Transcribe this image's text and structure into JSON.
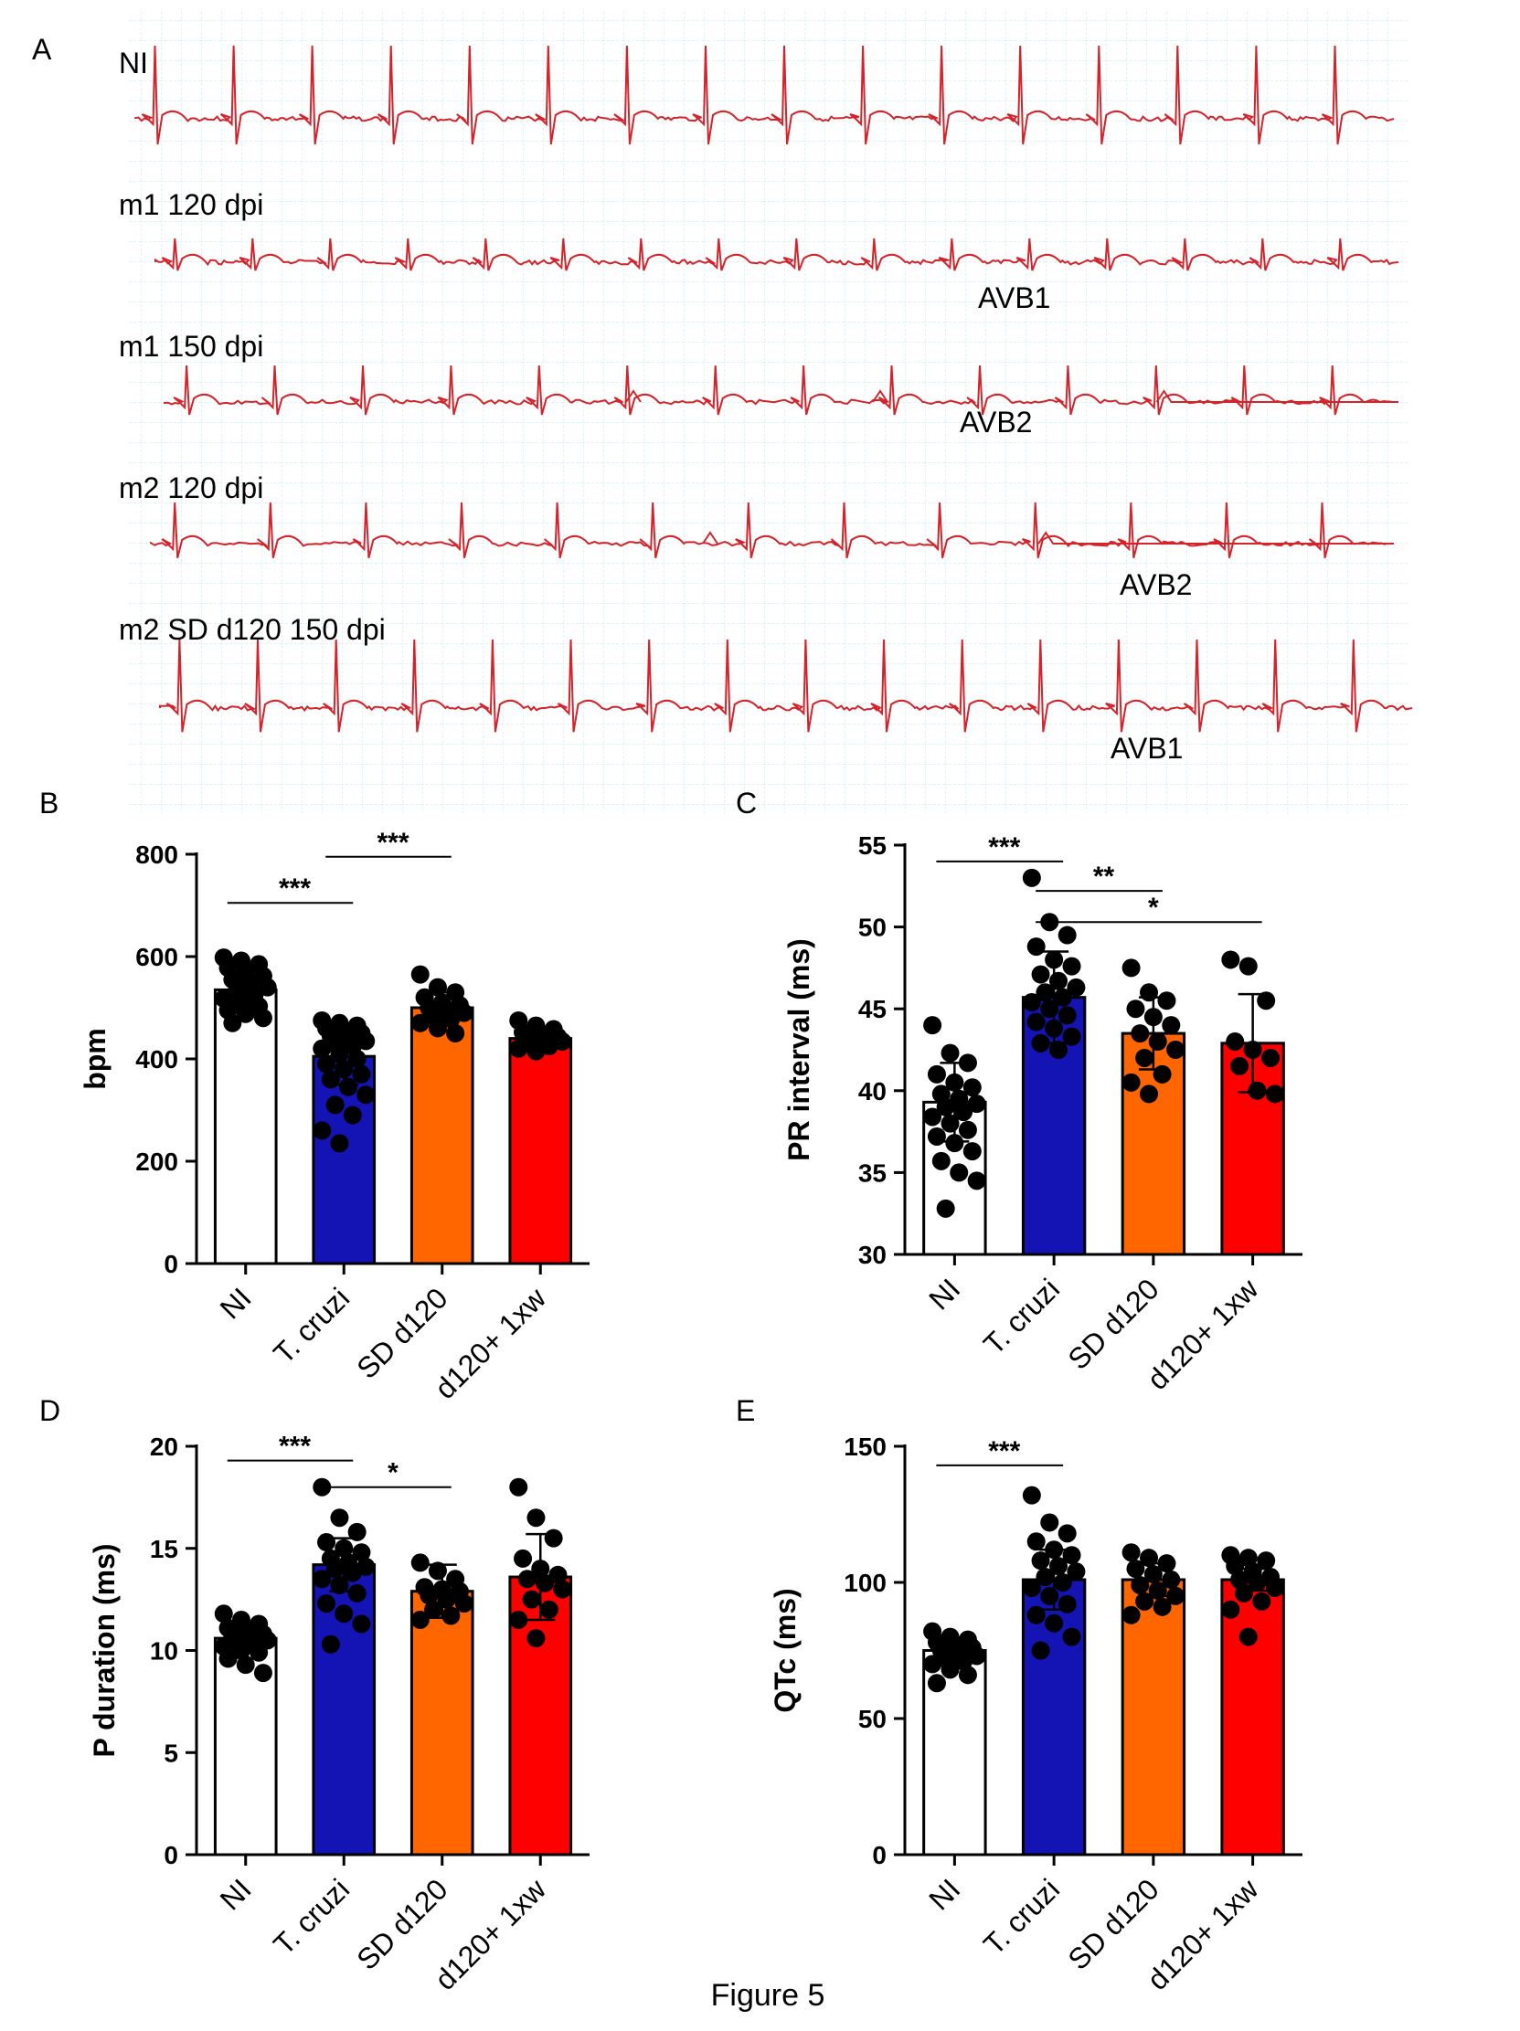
{
  "figure_caption": "Figure 5",
  "panel_a": {
    "letter": "A",
    "grid_color": "#bfe9f2",
    "trace_color": "#d4232a",
    "traces": [
      {
        "label": "NI",
        "annotation": "",
        "beats": 16,
        "extra_beats": []
      },
      {
        "label": "m1  120 dpi",
        "annotation": "AVB1",
        "beats": 16,
        "extra_beats": []
      },
      {
        "label": "m1  150 dpi",
        "annotation": "AVB2",
        "beats": 14,
        "extra_beats": [
          0.38,
          0.58,
          0.81
        ]
      },
      {
        "label": "m2  120 dpi",
        "annotation": "AVB2",
        "beats": 13,
        "extra_beats": [
          0.45,
          0.72
        ]
      },
      {
        "label": "m2  SD d120 150 dpi",
        "annotation": "AVB1",
        "beats": 16,
        "extra_beats": []
      }
    ]
  },
  "chart_data": [
    {
      "panel": "B",
      "type": "bar",
      "title": "",
      "xlabel": "",
      "ylabel": "bpm",
      "categories": [
        "NI",
        "T. cruzi",
        "SD d120",
        "d120+ 1xw"
      ],
      "colors": [
        "#ffffff",
        "#1414b4",
        "#ff6600",
        "#ff0000"
      ],
      "values": [
        535,
        405,
        500,
        440
      ],
      "errors": [
        25,
        55,
        30,
        15
      ],
      "ylim": [
        0,
        800
      ],
      "yticks": [
        0,
        200,
        400,
        600,
        800
      ],
      "points": [
        [
          598,
          592,
          585,
          578,
          570,
          562,
          555,
          548,
          540,
          533,
          525,
          518,
          510,
          503,
          495,
          488,
          480,
          470
        ],
        [
          475,
          470,
          465,
          460,
          455,
          450,
          445,
          440,
          435,
          430,
          425,
          420,
          410,
          400,
          390,
          380,
          370,
          360,
          345,
          330,
          310,
          290,
          260,
          235
        ],
        [
          565,
          540,
          530,
          520,
          510,
          505,
          500,
          495,
          490,
          485,
          478,
          470,
          460,
          450
        ],
        [
          475,
          465,
          458,
          452,
          447,
          443,
          440,
          437,
          434,
          430,
          425,
          420,
          415
        ]
      ],
      "significance": [
        {
          "from": 0,
          "to": 1,
          "label": "***",
          "y": 705
        },
        {
          "from": 1,
          "to": 2,
          "label": "***",
          "y": 795
        }
      ]
    },
    {
      "panel": "C",
      "type": "bar",
      "title": "",
      "xlabel": "",
      "ylabel": "PR interval (ms)",
      "categories": [
        "NI",
        "T. cruzi",
        "SD d120",
        "d120+ 1xw"
      ],
      "colors": [
        "#ffffff",
        "#1414b4",
        "#ff6600",
        "#ff0000"
      ],
      "values": [
        39.3,
        45.7,
        43.5,
        42.9
      ],
      "errors": [
        2.4,
        2.8,
        2.2,
        3.0
      ],
      "ylim": [
        30,
        55
      ],
      "yticks": [
        30,
        35,
        40,
        45,
        50,
        55
      ],
      "points": [
        [
          44.0,
          42.3,
          41.7,
          41.0,
          40.5,
          40.2,
          39.8,
          39.5,
          39.2,
          39.0,
          38.7,
          38.4,
          38.0,
          37.6,
          37.2,
          36.8,
          36.3,
          35.7,
          35.0,
          34.5,
          32.8
        ],
        [
          53.0,
          50.3,
          49.5,
          48.8,
          48.0,
          47.6,
          47.1,
          46.7,
          46.3,
          46.0,
          45.7,
          45.4,
          45.0,
          44.6,
          44.2,
          43.8,
          43.3,
          42.9,
          42.5
        ],
        [
          47.5,
          46.0,
          45.5,
          45.0,
          44.5,
          44.0,
          43.5,
          43.0,
          42.5,
          42.0,
          41.0,
          40.5,
          39.8
        ],
        [
          48.0,
          47.6,
          45.5,
          43.0,
          42.5,
          42.0,
          41.5,
          40.0,
          39.8
        ]
      ],
      "significance": [
        {
          "from": 0,
          "to": 1,
          "label": "***",
          "y": 54.0
        },
        {
          "from": 1,
          "to": 2,
          "label": "**",
          "y": 52.2
        },
        {
          "from": 1,
          "to": 3,
          "label": "*",
          "y": 50.3
        }
      ]
    },
    {
      "panel": "D",
      "type": "bar",
      "title": "",
      "xlabel": "",
      "ylabel": "P duration (ms)",
      "categories": [
        "NI",
        "T. cruzi",
        "SD d120",
        "d120+ 1xw"
      ],
      "colors": [
        "#ffffff",
        "#1414b4",
        "#ff6600",
        "#ff0000"
      ],
      "values": [
        10.6,
        14.2,
        12.9,
        13.6
      ],
      "errors": [
        0.7,
        1.3,
        1.3,
        2.1
      ],
      "ylim": [
        0,
        20
      ],
      "yticks": [
        0,
        5,
        10,
        15,
        20
      ],
      "points": [
        [
          11.8,
          11.5,
          11.3,
          11.1,
          11.0,
          10.8,
          10.7,
          10.6,
          10.5,
          10.4,
          10.3,
          10.2,
          10.0,
          9.9,
          9.6,
          9.3,
          8.9
        ],
        [
          18.0,
          16.5,
          15.8,
          15.3,
          15.0,
          14.8,
          14.5,
          14.3,
          14.1,
          14.0,
          13.8,
          13.5,
          13.2,
          12.8,
          12.3,
          11.8,
          11.3,
          10.3
        ],
        [
          14.3,
          13.9,
          13.5,
          13.1,
          13.0,
          12.9,
          12.7,
          12.5,
          12.3,
          12.0,
          11.7,
          11.5
        ],
        [
          18.0,
          16.5,
          15.5,
          14.5,
          14.0,
          13.7,
          13.5,
          13.3,
          13.0,
          12.5,
          12.0,
          11.5,
          10.6
        ]
      ],
      "significance": [
        {
          "from": 0,
          "to": 1,
          "label": "***",
          "y": 19.3
        },
        {
          "from": 1,
          "to": 2,
          "label": "*",
          "y": 18.0
        }
      ]
    },
    {
      "panel": "E",
      "type": "bar",
      "title": "",
      "xlabel": "",
      "ylabel": "QTc (ms)",
      "categories": [
        "NI",
        "T. cruzi",
        "SD d120",
        "d120+ 1xw"
      ],
      "colors": [
        "#ffffff",
        "#1414b4",
        "#ff6600",
        "#ff0000"
      ],
      "values": [
        75,
        101,
        101,
        101
      ],
      "errors": [
        4,
        11,
        6,
        4
      ],
      "ylim": [
        0,
        150
      ],
      "yticks": [
        0,
        50,
        100,
        150
      ],
      "points": [
        [
          82,
          80,
          79,
          78,
          77,
          76,
          75,
          74,
          73,
          72,
          71,
          70,
          68,
          66,
          63
        ],
        [
          132,
          122,
          118,
          115,
          112,
          110,
          108,
          106,
          104,
          102,
          100,
          98,
          95,
          92,
          88,
          85,
          80,
          75
        ],
        [
          111,
          109,
          107,
          105,
          103,
          101,
          99,
          97,
          95,
          93,
          91,
          88
        ],
        [
          110,
          109,
          108,
          106,
          104,
          102,
          101,
          100,
          98,
          96,
          93,
          90,
          80
        ]
      ],
      "significance": [
        {
          "from": 0,
          "to": 1,
          "label": "***",
          "y": 143
        }
      ]
    }
  ]
}
